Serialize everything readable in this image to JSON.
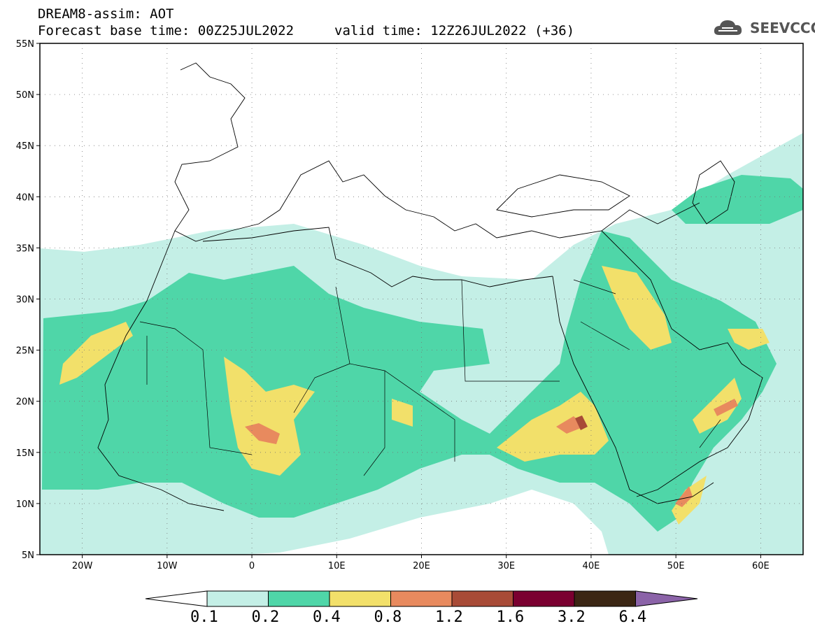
{
  "title": {
    "line1": "DREAM8-assim: AOT",
    "line2": "Forecast base time: 00Z25JUL2022",
    "valid": "valid time: 12Z26JUL2022 (+36)"
  },
  "logo": {
    "text": "SEEVCCC",
    "icon": "cloud-icon"
  },
  "map": {
    "lon_range": [
      -25,
      65
    ],
    "lat_range": [
      5,
      55
    ],
    "lat_labels": [
      "55N",
      "50N",
      "45N",
      "40N",
      "35N",
      "30N",
      "25N",
      "20N",
      "15N",
      "10N",
      "5N"
    ],
    "lat_values": [
      55,
      50,
      45,
      40,
      35,
      30,
      25,
      20,
      15,
      10,
      5
    ],
    "lon_labels": [
      "20W",
      "10W",
      "0",
      "10E",
      "20E",
      "30E",
      "40E",
      "50E",
      "60E"
    ],
    "lon_values": [
      -20,
      -10,
      0,
      10,
      20,
      30,
      40,
      50,
      60
    ],
    "grid": true
  },
  "colorbar": {
    "labels": [
      "0.1",
      "0.2",
      "0.4",
      "0.8",
      "1.2",
      "1.6",
      "3.2",
      "6.4"
    ],
    "colors": [
      "#ffffff",
      "#c4efe6",
      "#4fd6a8",
      "#f2e06a",
      "#e88a5e",
      "#a84b37",
      "#7a0030",
      "#3b2614",
      "#8b63a8"
    ]
  }
}
